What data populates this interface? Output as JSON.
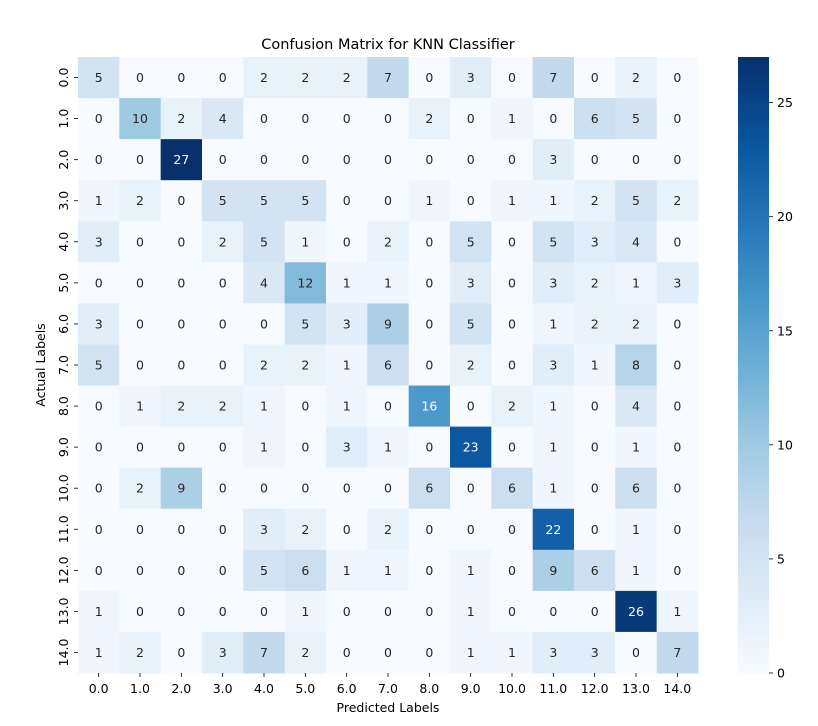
{
  "chart_data": {
    "type": "heatmap",
    "title": "Confusion Matrix for KNN Classifier",
    "xlabel": "Predicted Labels",
    "ylabel": "Actual Labels",
    "x_categories": [
      "0.0",
      "1.0",
      "2.0",
      "3.0",
      "4.0",
      "5.0",
      "6.0",
      "7.0",
      "8.0",
      "9.0",
      "10.0",
      "11.0",
      "12.0",
      "13.0",
      "14.0"
    ],
    "y_categories": [
      "0.0",
      "1.0",
      "2.0",
      "3.0",
      "4.0",
      "5.0",
      "6.0",
      "7.0",
      "8.0",
      "9.0",
      "10.0",
      "11.0",
      "12.0",
      "13.0",
      "14.0"
    ],
    "values": [
      [
        5,
        0,
        0,
        0,
        2,
        2,
        2,
        7,
        0,
        3,
        0,
        7,
        0,
        2,
        0
      ],
      [
        0,
        10,
        2,
        4,
        0,
        0,
        0,
        0,
        2,
        0,
        1,
        0,
        6,
        5,
        0
      ],
      [
        0,
        0,
        27,
        0,
        0,
        0,
        0,
        0,
        0,
        0,
        0,
        3,
        0,
        0,
        0
      ],
      [
        1,
        2,
        0,
        5,
        5,
        5,
        0,
        0,
        1,
        0,
        1,
        1,
        2,
        5,
        2
      ],
      [
        3,
        0,
        0,
        2,
        5,
        1,
        0,
        2,
        0,
        5,
        0,
        5,
        3,
        4,
        0
      ],
      [
        0,
        0,
        0,
        0,
        4,
        12,
        1,
        1,
        0,
        3,
        0,
        3,
        2,
        1,
        3
      ],
      [
        3,
        0,
        0,
        0,
        0,
        5,
        3,
        9,
        0,
        5,
        0,
        1,
        2,
        2,
        0
      ],
      [
        5,
        0,
        0,
        0,
        2,
        2,
        1,
        6,
        0,
        2,
        0,
        3,
        1,
        8,
        0
      ],
      [
        0,
        1,
        2,
        2,
        1,
        0,
        1,
        0,
        16,
        0,
        2,
        1,
        0,
        4,
        0
      ],
      [
        0,
        0,
        0,
        0,
        1,
        0,
        3,
        1,
        0,
        23,
        0,
        1,
        0,
        1,
        0
      ],
      [
        0,
        2,
        9,
        0,
        0,
        0,
        0,
        0,
        6,
        0,
        6,
        1,
        0,
        6,
        0
      ],
      [
        0,
        0,
        0,
        0,
        3,
        2,
        0,
        2,
        0,
        0,
        0,
        22,
        0,
        1,
        0
      ],
      [
        0,
        0,
        0,
        0,
        5,
        6,
        1,
        1,
        0,
        1,
        0,
        9,
        6,
        1,
        0
      ],
      [
        1,
        0,
        0,
        0,
        0,
        1,
        0,
        0,
        0,
        1,
        0,
        0,
        0,
        26,
        1
      ],
      [
        1,
        2,
        0,
        3,
        7,
        2,
        0,
        0,
        0,
        1,
        1,
        3,
        3,
        0,
        7
      ]
    ],
    "colormap": "Blues",
    "colorbar": {
      "range": [
        0,
        27
      ],
      "ticks": [
        0,
        5,
        10,
        15,
        20,
        25
      ]
    },
    "colors": {
      "low": "#f7fbff",
      "high": "#08306b",
      "text_dark": "#262626",
      "text_light": "#ffffff"
    }
  }
}
